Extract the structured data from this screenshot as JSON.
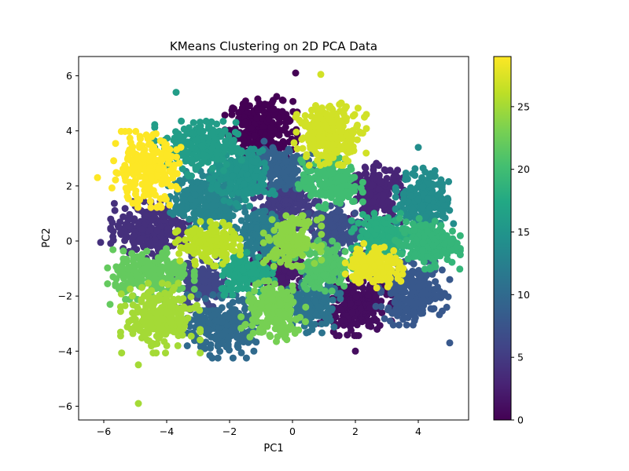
{
  "chart_data": {
    "type": "scatter",
    "title": "KMeans Clustering on 2D PCA Data",
    "xlabel": "PC1",
    "ylabel": "PC2",
    "xlim": [
      -6.8,
      5.6
    ],
    "ylim": [
      -6.5,
      6.7
    ],
    "xticks": [
      -6,
      -4,
      -2,
      0,
      2,
      4
    ],
    "yticks": [
      -6,
      -4,
      -2,
      0,
      2,
      4,
      6
    ],
    "grid": false,
    "colormap": "viridis",
    "colorbar": {
      "ticks": [
        0,
        5,
        10,
        15,
        20,
        25
      ],
      "range": [
        0,
        29
      ]
    },
    "cluster_count": 30,
    "clusters": [
      {
        "label": 0,
        "cx": -1.0,
        "cy": 4.1,
        "sx": 0.5,
        "sy": 0.5,
        "n": 260
      },
      {
        "label": 1,
        "cx": 2.0,
        "cy": -2.4,
        "sx": 0.5,
        "sy": 0.45,
        "n": 240
      },
      {
        "label": 2,
        "cx": -0.4,
        "cy": -1.0,
        "sx": 0.4,
        "sy": 0.4,
        "n": 170
      },
      {
        "label": 3,
        "cx": 2.7,
        "cy": 1.7,
        "sx": 0.4,
        "sy": 0.5,
        "n": 200
      },
      {
        "label": 4,
        "cx": -4.4,
        "cy": 0.4,
        "sx": 0.6,
        "sy": 0.45,
        "n": 240
      },
      {
        "label": 5,
        "cx": -0.2,
        "cy": 1.3,
        "sx": 0.45,
        "sy": 0.4,
        "n": 190
      },
      {
        "label": 6,
        "cx": -2.9,
        "cy": -1.6,
        "sx": 0.4,
        "sy": 0.45,
        "n": 150
      },
      {
        "label": 7,
        "cx": 1.4,
        "cy": 0.4,
        "sx": 0.4,
        "sy": 0.4,
        "n": 170
      },
      {
        "label": 8,
        "cx": 3.8,
        "cy": -1.9,
        "sx": 0.5,
        "sy": 0.5,
        "n": 240
      },
      {
        "label": 9,
        "cx": -0.4,
        "cy": 2.7,
        "sx": 0.45,
        "sy": 0.4,
        "n": 170
      },
      {
        "label": 10,
        "cx": -2.2,
        "cy": -3.1,
        "sx": 0.5,
        "sy": 0.5,
        "n": 240
      },
      {
        "label": 11,
        "cx": 0.6,
        "cy": -2.3,
        "sx": 0.4,
        "sy": 0.45,
        "n": 170
      },
      {
        "label": 12,
        "cx": -1.1,
        "cy": 0.3,
        "sx": 0.4,
        "sy": 0.4,
        "n": 170
      },
      {
        "label": 13,
        "cx": -2.8,
        "cy": 1.5,
        "sx": 0.5,
        "sy": 0.45,
        "n": 220
      },
      {
        "label": 14,
        "cx": 4.2,
        "cy": 1.5,
        "sx": 0.4,
        "sy": 0.5,
        "n": 200
      },
      {
        "label": 15,
        "cx": -1.6,
        "cy": 2.3,
        "sx": 0.45,
        "sy": 0.45,
        "n": 190
      },
      {
        "label": 16,
        "cx": -3.0,
        "cy": 3.4,
        "sx": 0.6,
        "sy": 0.45,
        "n": 230
      },
      {
        "label": 17,
        "cx": -1.5,
        "cy": -1.1,
        "sx": 0.4,
        "sy": 0.4,
        "n": 160
      },
      {
        "label": 18,
        "cx": 2.8,
        "cy": 0.2,
        "sx": 0.4,
        "sy": 0.35,
        "n": 160
      },
      {
        "label": 19,
        "cx": 4.3,
        "cy": -0.1,
        "sx": 0.45,
        "sy": 0.4,
        "n": 200
      },
      {
        "label": 20,
        "cx": 1.2,
        "cy": 2.1,
        "sx": 0.45,
        "sy": 0.4,
        "n": 190
      },
      {
        "label": 21,
        "cx": 1.0,
        "cy": -0.9,
        "sx": 0.4,
        "sy": 0.4,
        "n": 160
      },
      {
        "label": 22,
        "cx": -4.5,
        "cy": -1.2,
        "sx": 0.6,
        "sy": 0.4,
        "n": 220
      },
      {
        "label": 23,
        "cx": -0.6,
        "cy": -2.6,
        "sx": 0.45,
        "sy": 0.5,
        "n": 200
      },
      {
        "label": 24,
        "cx": 0.0,
        "cy": 0.0,
        "sx": 0.4,
        "sy": 0.4,
        "n": 160
      },
      {
        "label": 25,
        "cx": -4.2,
        "cy": -2.8,
        "sx": 0.55,
        "sy": 0.55,
        "n": 240
      },
      {
        "label": 26,
        "cx": -2.7,
        "cy": -0.1,
        "sx": 0.45,
        "sy": 0.35,
        "n": 170
      },
      {
        "label": 27,
        "cx": 1.2,
        "cy": 3.9,
        "sx": 0.5,
        "sy": 0.5,
        "n": 240
      },
      {
        "label": 28,
        "cx": 2.6,
        "cy": -0.9,
        "sx": 0.4,
        "sy": 0.35,
        "n": 150
      },
      {
        "label": 29,
        "cx": -4.7,
        "cy": 2.6,
        "sx": 0.5,
        "sy": 0.6,
        "n": 250
      }
    ],
    "outliers": [
      {
        "x": -4.9,
        "y": -5.9,
        "label": 25
      },
      {
        "x": 0.1,
        "y": 6.1,
        "label": 0
      },
      {
        "x": 0.9,
        "y": 6.05,
        "label": 27
      },
      {
        "label": 29,
        "x": -6.2,
        "y": 2.3
      },
      {
        "label": 4,
        "x": -6.1,
        "y": -0.05
      },
      {
        "label": 22,
        "x": -5.8,
        "y": -2.3
      },
      {
        "label": 1,
        "x": 2.0,
        "y": -4.0
      },
      {
        "label": 8,
        "x": 5.0,
        "y": -3.7
      },
      {
        "label": 8,
        "x": 5.0,
        "y": -1.4
      },
      {
        "label": 14,
        "x": 4.0,
        "y": 3.4
      },
      {
        "label": 25,
        "x": -4.9,
        "y": -4.5
      },
      {
        "label": 16,
        "x": -3.7,
        "y": 5.4
      }
    ]
  }
}
